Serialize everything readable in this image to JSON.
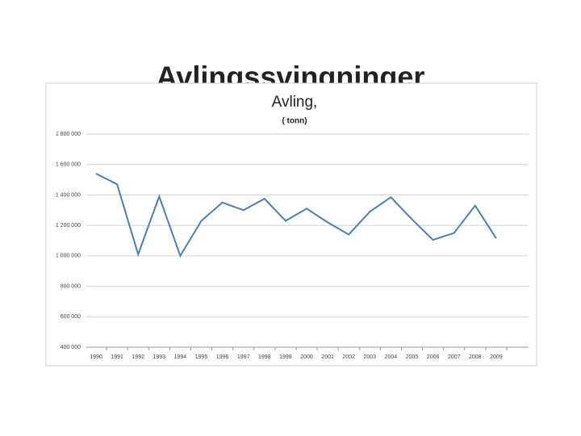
{
  "slide": {
    "title": "Avlingssvingninger"
  },
  "chart_data": {
    "type": "line",
    "title": "Avling,",
    "subtitle": "( tonn)",
    "categories": [
      "1990",
      "1991",
      "1992",
      "1993",
      "1994",
      "1995",
      "1996",
      "1997",
      "1998",
      "1999",
      "2000",
      "2001",
      "2002",
      "2003",
      "2004",
      "2005",
      "2006",
      "2007",
      "2008",
      "2009"
    ],
    "series": [
      {
        "name": "Avling",
        "color": "#4a7ebb",
        "values": [
          1540000,
          1470000,
          1010000,
          1390000,
          1000000,
          1230000,
          1350000,
          1300000,
          1375000,
          1230000,
          1310000,
          1220000,
          1140000,
          1290000,
          1385000,
          1240000,
          1105000,
          1150000,
          1330000,
          1115000
        ]
      }
    ],
    "ylim": [
      400000,
      1800000
    ],
    "yticks": [
      {
        "value": 400000,
        "label": "400 000"
      },
      {
        "value": 600000,
        "label": "600 000"
      },
      {
        "value": 800000,
        "label": "800 000"
      },
      {
        "value": 1000000,
        "label": "1 000 000"
      },
      {
        "value": 1200000,
        "label": "1 200 000"
      },
      {
        "value": 1400000,
        "label": "1 400 000"
      },
      {
        "value": 1600000,
        "label": "1 600 000"
      },
      {
        "value": 1800000,
        "label": "1 800 000"
      }
    ],
    "grid": true
  }
}
